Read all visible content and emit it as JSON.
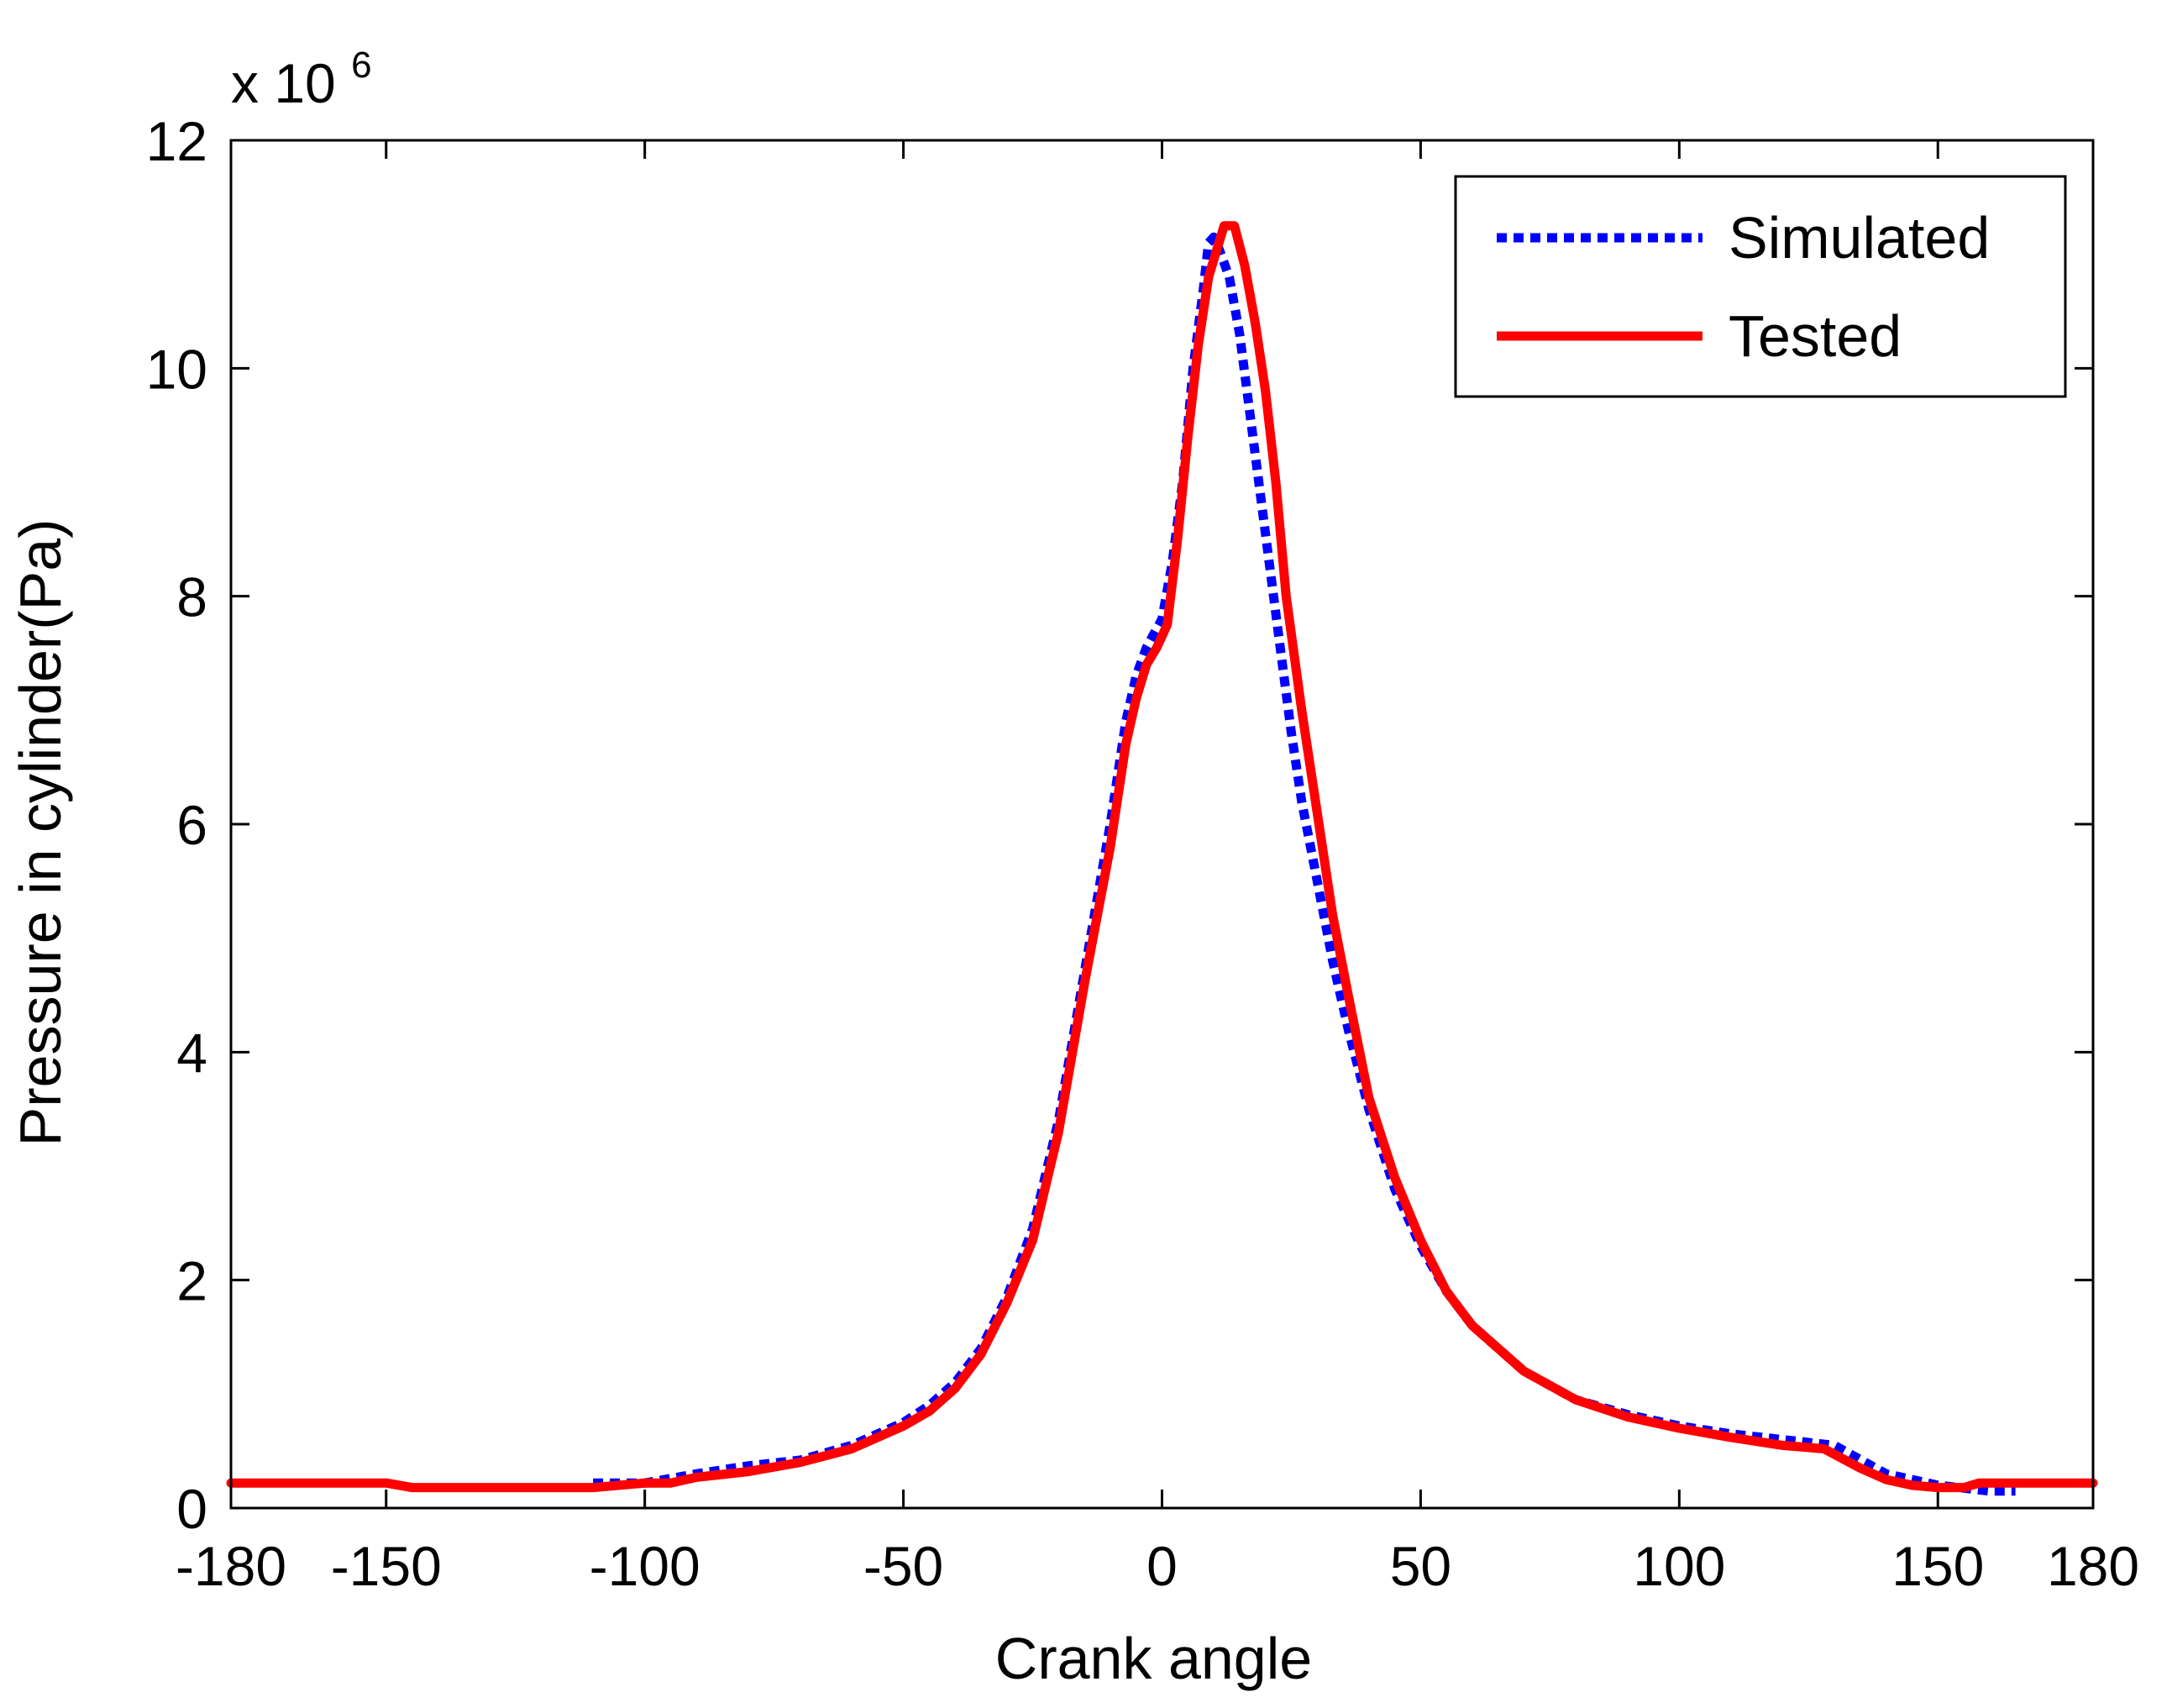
{
  "chart_data": {
    "type": "line",
    "title": "",
    "xlabel": "Crank angle",
    "ylabel": "Pressure in cylinder(Pa)",
    "y_multiplier": {
      "prefix": "x 10",
      "exponent": "6"
    },
    "xlim": [
      -180,
      180
    ],
    "ylim": [
      0,
      12
    ],
    "x_ticks": [
      -180,
      -150,
      -100,
      -50,
      0,
      50,
      100,
      150,
      180
    ],
    "x_tick_labels": [
      "-180",
      "-150",
      "-100",
      "-50",
      "0",
      "50",
      "100",
      "150",
      "180"
    ],
    "y_ticks": [
      0,
      2,
      4,
      6,
      8,
      10,
      12
    ],
    "y_tick_labels": [
      "0",
      "2",
      "4",
      "6",
      "8",
      "10",
      "12"
    ],
    "grid": false,
    "legend_position": "top-right",
    "series": [
      {
        "name": "Simulated",
        "color": "#0000ff",
        "style": "dotted",
        "points": [
          [
            -110,
            0.22
          ],
          [
            -100,
            0.22
          ],
          [
            -90,
            0.3
          ],
          [
            -80,
            0.37
          ],
          [
            -70,
            0.42
          ],
          [
            -60,
            0.55
          ],
          [
            -50,
            0.75
          ],
          [
            -45,
            0.9
          ],
          [
            -40,
            1.1
          ],
          [
            -35,
            1.4
          ],
          [
            -30,
            1.85
          ],
          [
            -25,
            2.45
          ],
          [
            -20,
            3.4
          ],
          [
            -15,
            4.7
          ],
          [
            -10,
            6.0
          ],
          [
            -7,
            6.9
          ],
          [
            -5,
            7.3
          ],
          [
            -3,
            7.55
          ],
          [
            0,
            7.8
          ],
          [
            2,
            8.3
          ],
          [
            4,
            9.0
          ],
          [
            6,
            10.0
          ],
          [
            8,
            10.7
          ],
          [
            9,
            11.1
          ],
          [
            10,
            11.15
          ],
          [
            11,
            11.05
          ],
          [
            13,
            10.8
          ],
          [
            15,
            10.3
          ],
          [
            17,
            9.6
          ],
          [
            19,
            8.9
          ],
          [
            21,
            8.2
          ],
          [
            23,
            7.5
          ],
          [
            25,
            6.8
          ],
          [
            27,
            6.2
          ],
          [
            30,
            5.5
          ],
          [
            33,
            4.8
          ],
          [
            36,
            4.2
          ],
          [
            40,
            3.5
          ],
          [
            45,
            2.8
          ],
          [
            50,
            2.3
          ],
          [
            55,
            1.9
          ],
          [
            60,
            1.6
          ],
          [
            70,
            1.2
          ],
          [
            80,
            0.95
          ],
          [
            90,
            0.82
          ],
          [
            100,
            0.72
          ],
          [
            110,
            0.65
          ],
          [
            120,
            0.6
          ],
          [
            130,
            0.55
          ],
          [
            140,
            0.3
          ],
          [
            150,
            0.2
          ],
          [
            160,
            0.15
          ],
          [
            165,
            0.15
          ]
        ]
      },
      {
        "name": "Tested",
        "color": "#ff0000",
        "style": "solid",
        "points": [
          [
            -180,
            0.22
          ],
          [
            -150,
            0.22
          ],
          [
            -145,
            0.18
          ],
          [
            -110,
            0.18
          ],
          [
            -100,
            0.22
          ],
          [
            -95,
            0.22
          ],
          [
            -90,
            0.27
          ],
          [
            -80,
            0.32
          ],
          [
            -70,
            0.4
          ],
          [
            -60,
            0.52
          ],
          [
            -50,
            0.72
          ],
          [
            -45,
            0.85
          ],
          [
            -40,
            1.05
          ],
          [
            -35,
            1.35
          ],
          [
            -30,
            1.8
          ],
          [
            -25,
            2.35
          ],
          [
            -20,
            3.3
          ],
          [
            -15,
            4.6
          ],
          [
            -10,
            5.8
          ],
          [
            -7,
            6.7
          ],
          [
            -5,
            7.1
          ],
          [
            -3,
            7.4
          ],
          [
            -1,
            7.55
          ],
          [
            1,
            7.75
          ],
          [
            3,
            8.5
          ],
          [
            5,
            9.4
          ],
          [
            7,
            10.2
          ],
          [
            9,
            10.8
          ],
          [
            11,
            11.1
          ],
          [
            12,
            11.25
          ],
          [
            14,
            11.25
          ],
          [
            16,
            10.9
          ],
          [
            18,
            10.4
          ],
          [
            20,
            9.8
          ],
          [
            22,
            9.0
          ],
          [
            24,
            8.0
          ],
          [
            27,
            7.0
          ],
          [
            30,
            6.1
          ],
          [
            33,
            5.2
          ],
          [
            36,
            4.5
          ],
          [
            40,
            3.6
          ],
          [
            45,
            2.9
          ],
          [
            50,
            2.35
          ],
          [
            55,
            1.9
          ],
          [
            60,
            1.6
          ],
          [
            70,
            1.2
          ],
          [
            80,
            0.95
          ],
          [
            90,
            0.8
          ],
          [
            100,
            0.7
          ],
          [
            110,
            0.62
          ],
          [
            120,
            0.55
          ],
          [
            128,
            0.52
          ],
          [
            135,
            0.35
          ],
          [
            140,
            0.25
          ],
          [
            145,
            0.2
          ],
          [
            150,
            0.18
          ],
          [
            155,
            0.18
          ],
          [
            158,
            0.22
          ],
          [
            180,
            0.22
          ]
        ]
      }
    ]
  }
}
